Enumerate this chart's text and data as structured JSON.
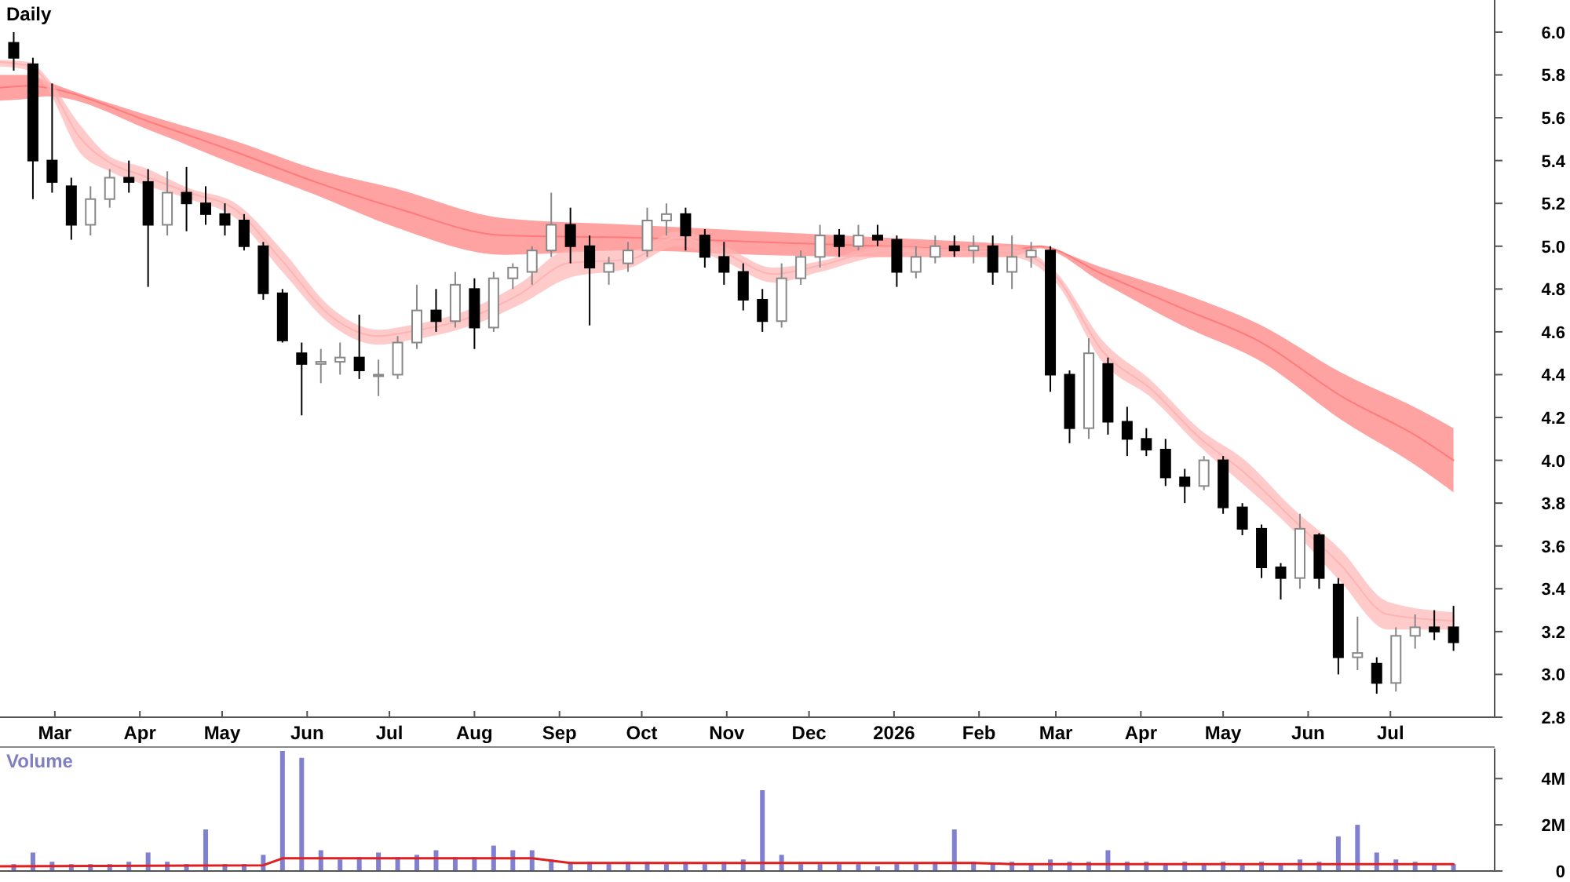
{
  "chart_data": [
    {
      "type": "candlestick",
      "title": "Daily",
      "x": [
        "2025-02-14",
        "2025-02-21",
        "2025-02-28",
        "2025-03-07",
        "2025-03-14",
        "2025-03-21",
        "2025-03-28",
        "2025-04-04",
        "2025-04-11",
        "2025-04-18",
        "2025-04-25",
        "2025-05-02",
        "2025-05-09",
        "2025-05-16",
        "2025-05-23",
        "2025-05-30",
        "2025-06-06",
        "2025-06-13",
        "2025-06-20",
        "2025-06-27",
        "2025-07-04",
        "2025-07-11",
        "2025-07-18",
        "2025-07-25",
        "2025-08-01",
        "2025-08-08",
        "2025-08-15",
        "2025-08-22",
        "2025-08-29",
        "2025-09-05",
        "2025-09-12",
        "2025-09-19",
        "2025-09-26",
        "2025-10-03",
        "2025-10-10",
        "2025-10-17",
        "2025-10-24",
        "2025-10-31",
        "2025-11-07",
        "2025-11-14",
        "2025-11-21",
        "2025-11-28",
        "2025-12-05",
        "2025-12-12",
        "2025-12-19",
        "2025-12-26",
        "2026-01-02",
        "2026-01-09",
        "2026-01-16",
        "2026-01-23",
        "2026-01-30",
        "2026-02-06",
        "2026-02-13",
        "2026-02-20",
        "2026-02-27",
        "2026-03-06",
        "2026-03-13",
        "2026-03-20",
        "2026-03-27",
        "2026-04-03",
        "2026-04-10",
        "2026-04-17",
        "2026-04-24",
        "2026-05-01",
        "2026-05-08",
        "2026-05-15",
        "2026-05-22",
        "2026-05-29",
        "2026-06-05",
        "2026-06-12",
        "2026-06-19",
        "2026-06-26",
        "2026-07-03",
        "2026-07-10",
        "2026-07-17",
        "2026-07-24"
      ],
      "ohlc": [
        [
          5.95,
          6.0,
          5.82,
          5.88
        ],
        [
          5.85,
          5.88,
          5.22,
          5.4
        ],
        [
          5.4,
          5.76,
          5.25,
          5.3
        ],
        [
          5.28,
          5.32,
          5.03,
          5.1
        ],
        [
          5.1,
          5.28,
          5.05,
          5.22
        ],
        [
          5.22,
          5.36,
          5.18,
          5.32
        ],
        [
          5.32,
          5.4,
          5.25,
          5.3
        ],
        [
          5.3,
          5.36,
          4.81,
          5.1
        ],
        [
          5.1,
          5.35,
          5.05,
          5.25
        ],
        [
          5.25,
          5.37,
          5.07,
          5.2
        ],
        [
          5.2,
          5.28,
          5.1,
          5.15
        ],
        [
          5.15,
          5.2,
          5.05,
          5.1
        ],
        [
          5.12,
          5.15,
          4.98,
          5.0
        ],
        [
          5.0,
          5.02,
          4.75,
          4.78
        ],
        [
          4.78,
          4.8,
          4.55,
          4.56
        ],
        [
          4.5,
          4.55,
          4.21,
          4.45
        ],
        [
          4.45,
          4.52,
          4.36,
          4.46
        ],
        [
          4.46,
          4.55,
          4.4,
          4.48
        ],
        [
          4.48,
          4.68,
          4.38,
          4.42
        ],
        [
          4.4,
          4.47,
          4.3,
          4.4
        ],
        [
          4.4,
          4.58,
          4.38,
          4.55
        ],
        [
          4.55,
          4.82,
          4.52,
          4.7
        ],
        [
          4.7,
          4.8,
          4.6,
          4.65
        ],
        [
          4.65,
          4.88,
          4.62,
          4.82
        ],
        [
          4.8,
          4.85,
          4.52,
          4.62
        ],
        [
          4.62,
          4.88,
          4.6,
          4.85
        ],
        [
          4.85,
          4.92,
          4.8,
          4.9
        ],
        [
          4.88,
          5.0,
          4.82,
          4.98
        ],
        [
          4.98,
          5.25,
          4.95,
          5.1
        ],
        [
          5.1,
          5.18,
          4.92,
          5.0
        ],
        [
          5.0,
          5.05,
          4.63,
          4.9
        ],
        [
          4.88,
          4.95,
          4.82,
          4.92
        ],
        [
          4.92,
          5.02,
          4.88,
          4.98
        ],
        [
          4.98,
          5.18,
          4.95,
          5.12
        ],
        [
          5.12,
          5.2,
          5.05,
          5.15
        ],
        [
          5.15,
          5.18,
          4.98,
          5.05
        ],
        [
          5.05,
          5.08,
          4.9,
          4.95
        ],
        [
          4.95,
          5.02,
          4.82,
          4.88
        ],
        [
          4.88,
          4.92,
          4.7,
          4.75
        ],
        [
          4.75,
          4.8,
          4.6,
          4.65
        ],
        [
          4.65,
          4.92,
          4.62,
          4.85
        ],
        [
          4.85,
          4.98,
          4.82,
          4.95
        ],
        [
          4.95,
          5.1,
          4.9,
          5.05
        ],
        [
          5.05,
          5.08,
          4.95,
          5.0
        ],
        [
          5.0,
          5.1,
          4.98,
          5.05
        ],
        [
          5.05,
          5.1,
          5.0,
          5.03
        ],
        [
          5.03,
          5.05,
          4.81,
          4.88
        ],
        [
          4.88,
          5.0,
          4.85,
          4.95
        ],
        [
          4.95,
          5.05,
          4.92,
          5.0
        ],
        [
          5.0,
          5.05,
          4.95,
          4.98
        ],
        [
          4.98,
          5.05,
          4.92,
          5.0
        ],
        [
          5.0,
          5.05,
          4.82,
          4.88
        ],
        [
          4.88,
          5.05,
          4.8,
          4.95
        ],
        [
          4.95,
          5.02,
          4.9,
          4.98
        ],
        [
          4.98,
          5.0,
          4.32,
          4.4
        ],
        [
          4.4,
          4.42,
          4.08,
          4.15
        ],
        [
          4.15,
          4.57,
          4.1,
          4.5
        ],
        [
          4.45,
          4.48,
          4.12,
          4.18
        ],
        [
          4.18,
          4.25,
          4.02,
          4.1
        ],
        [
          4.1,
          4.15,
          4.02,
          4.05
        ],
        [
          4.05,
          4.1,
          3.88,
          3.92
        ],
        [
          3.92,
          3.96,
          3.8,
          3.88
        ],
        [
          3.88,
          4.02,
          3.86,
          4.0
        ],
        [
          4.0,
          4.02,
          3.75,
          3.78
        ],
        [
          3.78,
          3.8,
          3.65,
          3.68
        ],
        [
          3.68,
          3.7,
          3.45,
          3.5
        ],
        [
          3.5,
          3.52,
          3.35,
          3.45
        ],
        [
          3.45,
          3.75,
          3.4,
          3.68
        ],
        [
          3.65,
          3.66,
          3.4,
          3.45
        ],
        [
          3.42,
          3.45,
          3.0,
          3.08
        ],
        [
          3.08,
          3.27,
          3.02,
          3.1
        ],
        [
          3.05,
          3.08,
          2.91,
          2.96
        ],
        [
          2.96,
          3.22,
          2.92,
          3.18
        ],
        [
          3.18,
          3.28,
          3.12,
          3.22
        ],
        [
          3.22,
          3.3,
          3.16,
          3.2
        ],
        [
          3.22,
          3.32,
          3.11,
          3.15
        ]
      ],
      "series": [
        {
          "type": "line",
          "color": "#ff7b7b",
          "x": [
            "2025-02-09",
            "2025-02-20",
            "2025-02-26",
            "2025-04-07",
            "2025-05-06",
            "2025-06-04",
            "2025-07-03",
            "2025-08-12",
            "2025-09-27",
            "2025-11-12",
            "2025-12-28",
            "2026-02-12",
            "2026-02-23",
            "2026-03-18",
            "2026-04-16",
            "2026-05-15",
            "2026-06-13",
            "2026-07-11",
            "2026-07-24"
          ],
          "values": [
            5.74,
            5.75,
            5.74,
            5.57,
            5.44,
            5.3,
            5.18,
            5.05,
            5.04,
            5.02,
            5.0,
            4.98,
            5.0,
            4.87,
            4.71,
            4.55,
            4.3,
            4.11,
            4.0
          ],
          "upper": [
            5.8,
            5.8,
            5.77,
            5.6,
            5.49,
            5.36,
            5.27,
            5.13,
            5.1,
            5.07,
            5.04,
            5.01,
            5.0,
            4.9,
            4.78,
            4.63,
            4.41,
            4.24,
            4.15
          ],
          "lower": [
            5.68,
            5.69,
            5.7,
            5.53,
            5.38,
            5.24,
            5.09,
            4.96,
            4.98,
            4.96,
            4.95,
            4.95,
            4.99,
            4.83,
            4.63,
            4.46,
            4.19,
            3.97,
            3.85
          ]
        },
        {
          "type": "line",
          "color": "#ffb3b3",
          "x": [
            "2025-02-09",
            "2025-02-20",
            "2025-02-26",
            "2025-03-10",
            "2025-03-21",
            "2025-04-02",
            "2025-04-19",
            "2025-05-06",
            "2025-05-23",
            "2025-06-10",
            "2025-06-27",
            "2025-07-08",
            "2025-07-31",
            "2025-08-18",
            "2025-09-04",
            "2025-09-27",
            "2025-10-14",
            "2025-10-31",
            "2025-11-18",
            "2025-12-05",
            "2025-12-28",
            "2026-01-20",
            "2026-02-12",
            "2026-03-01",
            "2026-03-18",
            "2026-04-05",
            "2026-04-22",
            "2026-05-09",
            "2026-05-26",
            "2026-06-13",
            "2026-06-30",
            "2026-07-24"
          ],
          "values": [
            5.86,
            5.84,
            5.77,
            5.51,
            5.39,
            5.33,
            5.25,
            5.17,
            4.93,
            4.67,
            4.58,
            4.6,
            4.67,
            4.78,
            4.92,
            4.94,
            5.04,
            4.97,
            4.87,
            4.91,
            4.98,
            4.97,
            4.98,
            4.86,
            4.51,
            4.33,
            4.11,
            3.94,
            3.73,
            3.51,
            3.28,
            3.25
          ],
          "upper": [
            5.87,
            5.86,
            5.79,
            5.57,
            5.42,
            5.37,
            5.27,
            5.2,
            4.98,
            4.71,
            4.61,
            4.63,
            4.71,
            4.83,
            4.98,
            4.98,
            5.07,
            5.0,
            4.9,
            4.93,
            5.0,
            4.99,
            5.0,
            4.88,
            4.56,
            4.37,
            4.15,
            4.0,
            3.78,
            3.58,
            3.34,
            3.29
          ],
          "lower": [
            5.84,
            5.82,
            5.74,
            5.44,
            5.35,
            5.29,
            5.22,
            5.13,
            4.88,
            4.63,
            4.54,
            4.56,
            4.63,
            4.73,
            4.85,
            4.9,
            5.0,
            4.93,
            4.83,
            4.88,
            4.95,
            4.95,
            4.95,
            4.83,
            4.46,
            4.29,
            4.07,
            3.88,
            3.68,
            3.43,
            3.21,
            3.21
          ]
        }
      ],
      "xlim": [
        "2025-02-09",
        "2026-08-08"
      ],
      "xticks": [
        {
          "value": "2025-03-01",
          "label": "Mar"
        },
        {
          "value": "2025-04-01",
          "label": "Apr"
        },
        {
          "value": "2025-05-01",
          "label": "May"
        },
        {
          "value": "2025-06-01",
          "label": "Jun"
        },
        {
          "value": "2025-07-01",
          "label": "Jul"
        },
        {
          "value": "2025-08-01",
          "label": "Aug"
        },
        {
          "value": "2025-09-01",
          "label": "Sep"
        },
        {
          "value": "2025-10-01",
          "label": "Oct"
        },
        {
          "value": "2025-11-01",
          "label": "Nov"
        },
        {
          "value": "2025-12-01",
          "label": "Dec"
        },
        {
          "value": "2026-01-01",
          "label": "2026"
        },
        {
          "value": "2026-02-01",
          "label": "Feb"
        },
        {
          "value": "2026-03-01",
          "label": "Mar"
        },
        {
          "value": "2026-04-01",
          "label": "Apr"
        },
        {
          "value": "2026-05-01",
          "label": "May"
        },
        {
          "value": "2026-06-01",
          "label": "Jun"
        },
        {
          "value": "2026-07-01",
          "label": "Jul"
        }
      ],
      "ylim": [
        2.8,
        6.15
      ],
      "yticks": [
        2.8,
        {
          "value": 3,
          "label": "3.0"
        },
        3.2,
        3.4,
        3.6,
        3.8,
        {
          "value": 4,
          "label": "4.0"
        },
        4.2,
        4.4,
        4.6,
        4.8,
        {
          "value": 5,
          "label": "5.0"
        },
        5.2,
        5.4,
        5.6,
        5.8,
        {
          "value": 6,
          "label": "6.0"
        }
      ]
    },
    {
      "type": "bar",
      "title": "Volume",
      "color": "#8080d0",
      "tick_labels": "y",
      "x": [
        "2025-02-14",
        "2025-02-21",
        "2025-02-28",
        "2025-03-07",
        "2025-03-14",
        "2025-03-21",
        "2025-03-28",
        "2025-04-04",
        "2025-04-11",
        "2025-04-18",
        "2025-04-25",
        "2025-05-02",
        "2025-05-09",
        "2025-05-16",
        "2025-05-23",
        "2025-05-30",
        "2025-06-06",
        "2025-06-13",
        "2025-06-20",
        "2025-06-27",
        "2025-07-04",
        "2025-07-11",
        "2025-07-18",
        "2025-07-25",
        "2025-08-01",
        "2025-08-08",
        "2025-08-15",
        "2025-08-22",
        "2025-08-29",
        "2025-09-05",
        "2025-09-12",
        "2025-09-19",
        "2025-09-26",
        "2025-10-03",
        "2025-10-10",
        "2025-10-17",
        "2025-10-24",
        "2025-10-31",
        "2025-11-07",
        "2025-11-14",
        "2025-11-21",
        "2025-11-28",
        "2025-12-05",
        "2025-12-12",
        "2025-12-19",
        "2025-12-26",
        "2026-01-02",
        "2026-01-09",
        "2026-01-16",
        "2026-01-23",
        "2026-01-30",
        "2026-02-06",
        "2026-02-13",
        "2026-02-20",
        "2026-02-27",
        "2026-03-06",
        "2026-03-13",
        "2026-03-20",
        "2026-03-27",
        "2026-04-03",
        "2026-04-10",
        "2026-04-17",
        "2026-04-24",
        "2026-05-01",
        "2026-05-08",
        "2026-05-15",
        "2026-05-22",
        "2026-05-29",
        "2026-06-05",
        "2026-06-12",
        "2026-06-19",
        "2026-06-26",
        "2026-07-03",
        "2026-07-10",
        "2026-07-17",
        "2026-07-24"
      ],
      "values": [
        300000,
        800000,
        400000,
        300000,
        300000,
        300000,
        400000,
        800000,
        400000,
        300000,
        1800000,
        300000,
        300000,
        700000,
        5200000,
        4900000,
        900000,
        500000,
        600000,
        800000,
        600000,
        700000,
        900000,
        600000,
        600000,
        1100000,
        900000,
        900000,
        500000,
        400000,
        400000,
        300000,
        400000,
        400000,
        300000,
        400000,
        300000,
        400000,
        500000,
        3500000,
        700000,
        300000,
        300000,
        300000,
        300000,
        200000,
        300000,
        300000,
        400000,
        1800000,
        400000,
        300000,
        400000,
        300000,
        500000,
        400000,
        400000,
        900000,
        400000,
        400000,
        300000,
        400000,
        300000,
        400000,
        300000,
        400000,
        300000,
        500000,
        400000,
        1500000,
        2000000,
        800000,
        500000,
        400000,
        300000,
        300000
      ],
      "series": [
        {
          "type": "line",
          "color": "#e02020",
          "x": [
            "2025-02-09",
            "2025-05-16",
            "2025-05-23",
            "2025-08-22",
            "2025-09-05",
            "2026-01-30",
            "2026-02-13",
            "2026-07-24"
          ],
          "values": [
            200000,
            250000,
            550000,
            550000,
            350000,
            350000,
            300000,
            300000
          ]
        }
      ],
      "xlim": [
        "2025-02-09",
        "2026-08-08"
      ],
      "ylim": [
        0,
        5300000
      ],
      "yticks": [
        0,
        {
          "value": 2000000,
          "label": "2M"
        },
        {
          "value": 4000000,
          "label": "4M"
        }
      ]
    }
  ]
}
